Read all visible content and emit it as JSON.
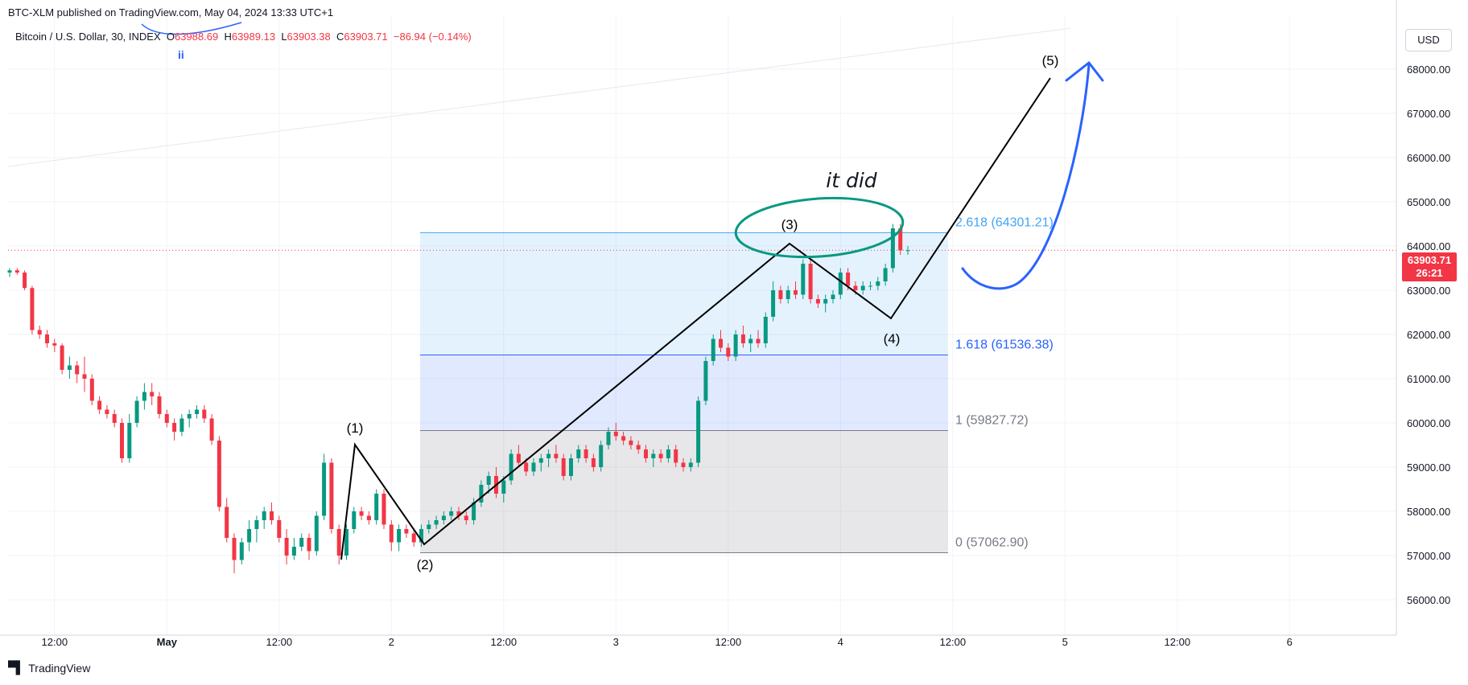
{
  "header": {
    "published": "BTC-XLM published on TradingView.com, May 04, 2024 13:33 UTC+1",
    "symbol": "Bitcoin / U.S. Dollar, 30, INDEX",
    "o_label": "O",
    "o": "63988.69",
    "h_label": "H",
    "h": "63989.13",
    "l_label": "L",
    "l": "63903.38",
    "c_label": "C",
    "c": "63903.71",
    "change": "−86.94 (−0.14%)",
    "marker": "ii"
  },
  "currency": "USD",
  "last_price": {
    "value": "63903.71",
    "countdown": "26:21"
  },
  "brand": "TradingView",
  "colors": {
    "up": "#089981",
    "down": "#f23645",
    "fib_blue": "#2962ff",
    "fib_light": "#42a5f5",
    "annotation": "#089981",
    "arrow": "#2962ff"
  },
  "chart_data": {
    "type": "candlestick",
    "ylim": [
      55200,
      69200
    ],
    "y_ticks": [
      "68000.00",
      "67000.00",
      "66000.00",
      "65000.00",
      "64000.00",
      "63000.00",
      "62000.00",
      "61000.00",
      "60000.00",
      "59000.00",
      "58000.00",
      "57000.00",
      "56000.00"
    ],
    "y_tick_values": [
      68000,
      67000,
      66000,
      65000,
      64000,
      63000,
      62000,
      61000,
      60000,
      59000,
      58000,
      57000,
      56000
    ],
    "x_ticks": [
      "12:00",
      "May",
      "12:00",
      "2",
      "12:00",
      "3",
      "12:00",
      "4",
      "12:00",
      "5",
      "12:00",
      "6"
    ],
    "x_tick_index": [
      6,
      21,
      36,
      51,
      66,
      81,
      96,
      111,
      126,
      141,
      156,
      171
    ],
    "candles": [
      [
        63400,
        63500,
        63300,
        63450
      ],
      [
        63450,
        63500,
        63350,
        63400
      ],
      [
        63400,
        63450,
        63000,
        63050
      ],
      [
        63050,
        63100,
        62000,
        62100
      ],
      [
        62100,
        62200,
        61900,
        62000
      ],
      [
        62000,
        62100,
        61700,
        61800
      ],
      [
        61800,
        61900,
        61600,
        61750
      ],
      [
        61750,
        61800,
        61100,
        61200
      ],
      [
        61200,
        61500,
        61000,
        61300
      ],
      [
        61300,
        61400,
        60900,
        61100
      ],
      [
        61100,
        61500,
        60700,
        61000
      ],
      [
        61000,
        61100,
        60400,
        60500
      ],
      [
        60500,
        60600,
        60200,
        60300
      ],
      [
        60300,
        60400,
        60100,
        60200
      ],
      [
        60200,
        60300,
        59900,
        60000
      ],
      [
        60000,
        60100,
        59100,
        59200
      ],
      [
        59200,
        60200,
        59100,
        60000
      ],
      [
        60000,
        60600,
        59900,
        60500
      ],
      [
        60500,
        60900,
        60300,
        60700
      ],
      [
        60700,
        60900,
        60400,
        60600
      ],
      [
        60600,
        60700,
        60100,
        60200
      ],
      [
        60200,
        60300,
        59900,
        60000
      ],
      [
        60000,
        60100,
        59600,
        59800
      ],
      [
        59800,
        60200,
        59700,
        60100
      ],
      [
        60100,
        60300,
        59900,
        60200
      ],
      [
        60200,
        60400,
        60100,
        60300
      ],
      [
        60300,
        60400,
        60000,
        60100
      ],
      [
        60100,
        60200,
        59500,
        59600
      ],
      [
        59600,
        59700,
        58000,
        58100
      ],
      [
        58100,
        58300,
        57300,
        57400
      ],
      [
        57400,
        57500,
        56600,
        56900
      ],
      [
        56900,
        57400,
        56800,
        57300
      ],
      [
        57300,
        57800,
        57100,
        57600
      ],
      [
        57600,
        57900,
        57300,
        57800
      ],
      [
        57800,
        58100,
        57600,
        58000
      ],
      [
        58000,
        58200,
        57700,
        57800
      ],
      [
        57800,
        57900,
        57300,
        57400
      ],
      [
        57400,
        57600,
        56800,
        57000
      ],
      [
        57000,
        57400,
        56900,
        57200
      ],
      [
        57200,
        57500,
        57100,
        57400
      ],
      [
        57400,
        57500,
        56900,
        57100
      ],
      [
        57100,
        58000,
        57000,
        57900
      ],
      [
        57900,
        59300,
        57800,
        59100
      ],
      [
        59100,
        59200,
        57500,
        57600
      ],
      [
        57600,
        57700,
        56800,
        57000
      ],
      [
        57000,
        57700,
        56900,
        57600
      ],
      [
        57600,
        58100,
        57500,
        58000
      ],
      [
        58000,
        58100,
        57800,
        57900
      ],
      [
        57900,
        58000,
        57700,
        57800
      ],
      [
        57800,
        58500,
        57700,
        58400
      ],
      [
        58400,
        58500,
        57600,
        57700
      ],
      [
        57700,
        57800,
        57100,
        57300
      ],
      [
        57300,
        57700,
        57100,
        57600
      ],
      [
        57600,
        57700,
        57400,
        57500
      ],
      [
        57500,
        57600,
        57200,
        57300
      ],
      [
        57300,
        57700,
        57200,
        57600
      ],
      [
        57600,
        57800,
        57500,
        57700
      ],
      [
        57700,
        57900,
        57600,
        57800
      ],
      [
        57800,
        58000,
        57700,
        57900
      ],
      [
        57900,
        58100,
        57800,
        58000
      ],
      [
        58000,
        58100,
        57800,
        57900
      ],
      [
        57900,
        58000,
        57700,
        57800
      ],
      [
        57800,
        58300,
        57700,
        58200
      ],
      [
        58200,
        58700,
        58100,
        58600
      ],
      [
        58600,
        58900,
        58400,
        58800
      ],
      [
        58800,
        59000,
        58300,
        58400
      ],
      [
        58400,
        58800,
        58200,
        58700
      ],
      [
        58700,
        59400,
        58600,
        59300
      ],
      [
        59300,
        59500,
        59000,
        59100
      ],
      [
        59100,
        59200,
        58800,
        58900
      ],
      [
        58900,
        59200,
        58800,
        59100
      ],
      [
        59100,
        59300,
        58900,
        59200
      ],
      [
        59200,
        59400,
        59000,
        59300
      ],
      [
        59300,
        59500,
        59100,
        59200
      ],
      [
        59200,
        59300,
        58700,
        58800
      ],
      [
        58800,
        59300,
        58700,
        59200
      ],
      [
        59200,
        59500,
        59100,
        59400
      ],
      [
        59400,
        59500,
        59100,
        59200
      ],
      [
        59200,
        59300,
        58900,
        59000
      ],
      [
        59000,
        59600,
        58900,
        59500
      ],
      [
        59500,
        59900,
        59400,
        59800
      ],
      [
        59800,
        60000,
        59600,
        59700
      ],
      [
        59700,
        59800,
        59500,
        59600
      ],
      [
        59600,
        59700,
        59400,
        59500
      ],
      [
        59500,
        59600,
        59300,
        59400
      ],
      [
        59400,
        59500,
        59100,
        59200
      ],
      [
        59200,
        59400,
        59000,
        59300
      ],
      [
        59300,
        59400,
        59100,
        59200
      ],
      [
        59200,
        59500,
        59100,
        59400
      ],
      [
        59400,
        59500,
        59000,
        59100
      ],
      [
        59100,
        59200,
        58900,
        59000
      ],
      [
        59000,
        59200,
        58900,
        59100
      ],
      [
        59100,
        60600,
        59000,
        60500
      ],
      [
        60500,
        61500,
        60400,
        61400
      ],
      [
        61400,
        62000,
        61300,
        61900
      ],
      [
        61900,
        62100,
        61600,
        61700
      ],
      [
        61700,
        61800,
        61400,
        61500
      ],
      [
        61500,
        62100,
        61400,
        62000
      ],
      [
        62000,
        62200,
        61700,
        61800
      ],
      [
        61800,
        62000,
        61600,
        61900
      ],
      [
        61900,
        62100,
        61700,
        61800
      ],
      [
        61800,
        62500,
        61700,
        62400
      ],
      [
        62400,
        63200,
        62300,
        63000
      ],
      [
        63000,
        63100,
        62700,
        62800
      ],
      [
        62800,
        63100,
        62700,
        63000
      ],
      [
        63000,
        63200,
        62800,
        62900
      ],
      [
        62900,
        63700,
        62800,
        63600
      ],
      [
        63600,
        63700,
        62700,
        62800
      ],
      [
        62800,
        62900,
        62600,
        62700
      ],
      [
        62700,
        62900,
        62500,
        62800
      ],
      [
        62800,
        63000,
        62700,
        62900
      ],
      [
        62900,
        63500,
        62800,
        63400
      ],
      [
        63400,
        63500,
        63000,
        63100
      ],
      [
        63100,
        63200,
        62900,
        63000
      ],
      [
        63000,
        63200,
        62900,
        63100
      ],
      [
        63100,
        63200,
        63000,
        63100
      ],
      [
        63100,
        63300,
        63000,
        63200
      ],
      [
        63200,
        63600,
        63100,
        63500
      ],
      [
        63500,
        64500,
        63400,
        64400
      ],
      [
        64400,
        64500,
        63800,
        63900
      ],
      [
        63900,
        64000,
        63800,
        63904
      ]
    ],
    "waves": {
      "points": [
        [
          57000,
          -1
        ],
        [
          59400,
          1
        ],
        [
          57000,
          -1
        ],
        [
          64400,
          1
        ],
        [
          62500,
          -1
        ],
        [
          68200,
          1
        ]
      ],
      "labels": [
        "(1)",
        "(2)",
        "(3)",
        "(4)",
        "(5)"
      ]
    },
    "fibonacci": [
      {
        "ratio": "2.618",
        "price": "64301.21",
        "label": "2.618 (64301.21)",
        "value": 64301.21
      },
      {
        "ratio": "1.618",
        "price": "61536.38",
        "label": "1.618 (61536.38)",
        "value": 61536.38
      },
      {
        "ratio": "1",
        "price": "59827.72",
        "label": "1 (59827.72)",
        "value": 59827.72
      },
      {
        "ratio": "0",
        "price": "57062.90",
        "label": "0 (57062.90)",
        "value": 57062.9
      }
    ],
    "annotation": "it did",
    "last_price_line": 63903.71
  }
}
